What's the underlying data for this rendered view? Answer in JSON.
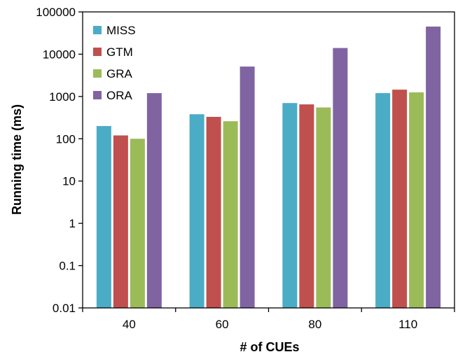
{
  "chart_data": {
    "type": "bar",
    "yscale": "log",
    "title": "",
    "xlabel": "# of CUEs",
    "ylabel": "Running time (ms)",
    "categories": [
      "40",
      "60",
      "80",
      "110"
    ],
    "ylim": [
      0.01,
      100000
    ],
    "yticks": [
      "0.01",
      "0.1",
      "1",
      "10",
      "100",
      "1000",
      "10000",
      "100000"
    ],
    "legend_position": "top-left",
    "grid": false,
    "series": [
      {
        "name": "MISS",
        "color": "#4bacc6",
        "values": [
          200,
          380,
          700,
          1200
        ]
      },
      {
        "name": "GTM",
        "color": "#c0504d",
        "values": [
          120,
          330,
          650,
          1450
        ]
      },
      {
        "name": "GRA",
        "color": "#9bbb59",
        "values": [
          100,
          260,
          550,
          1250
        ]
      },
      {
        "name": "ORA",
        "color": "#8064a2",
        "values": [
          1200,
          5100,
          14000,
          45000
        ]
      }
    ]
  }
}
